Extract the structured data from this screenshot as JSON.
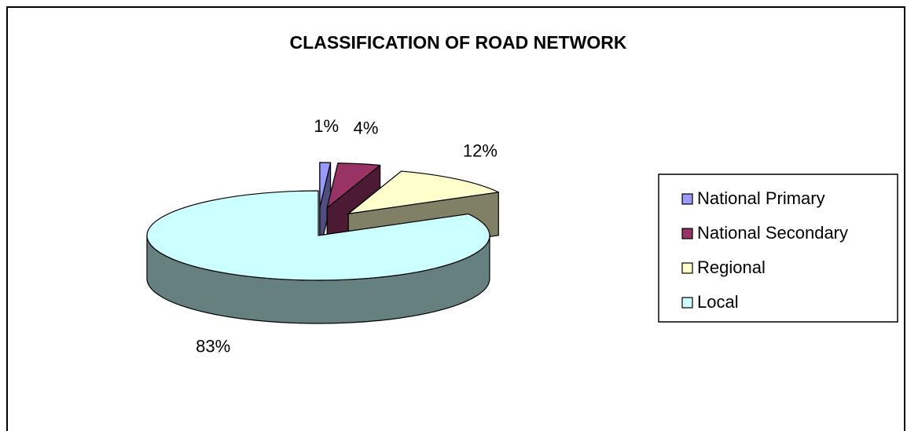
{
  "chart_data": {
    "type": "pie",
    "title": "CLASSIFICATION OF ROAD NETWORK",
    "categories": [
      "National Primary",
      "National Secondary",
      "Regional",
      "Local"
    ],
    "values": [
      1,
      4,
      12,
      83
    ],
    "value_labels": [
      "1%",
      "4%",
      "12%",
      "83%"
    ],
    "colors": [
      "#9999ff",
      "#993366",
      "#ffffcc",
      "#ccffff"
    ],
    "legend": "right"
  }
}
